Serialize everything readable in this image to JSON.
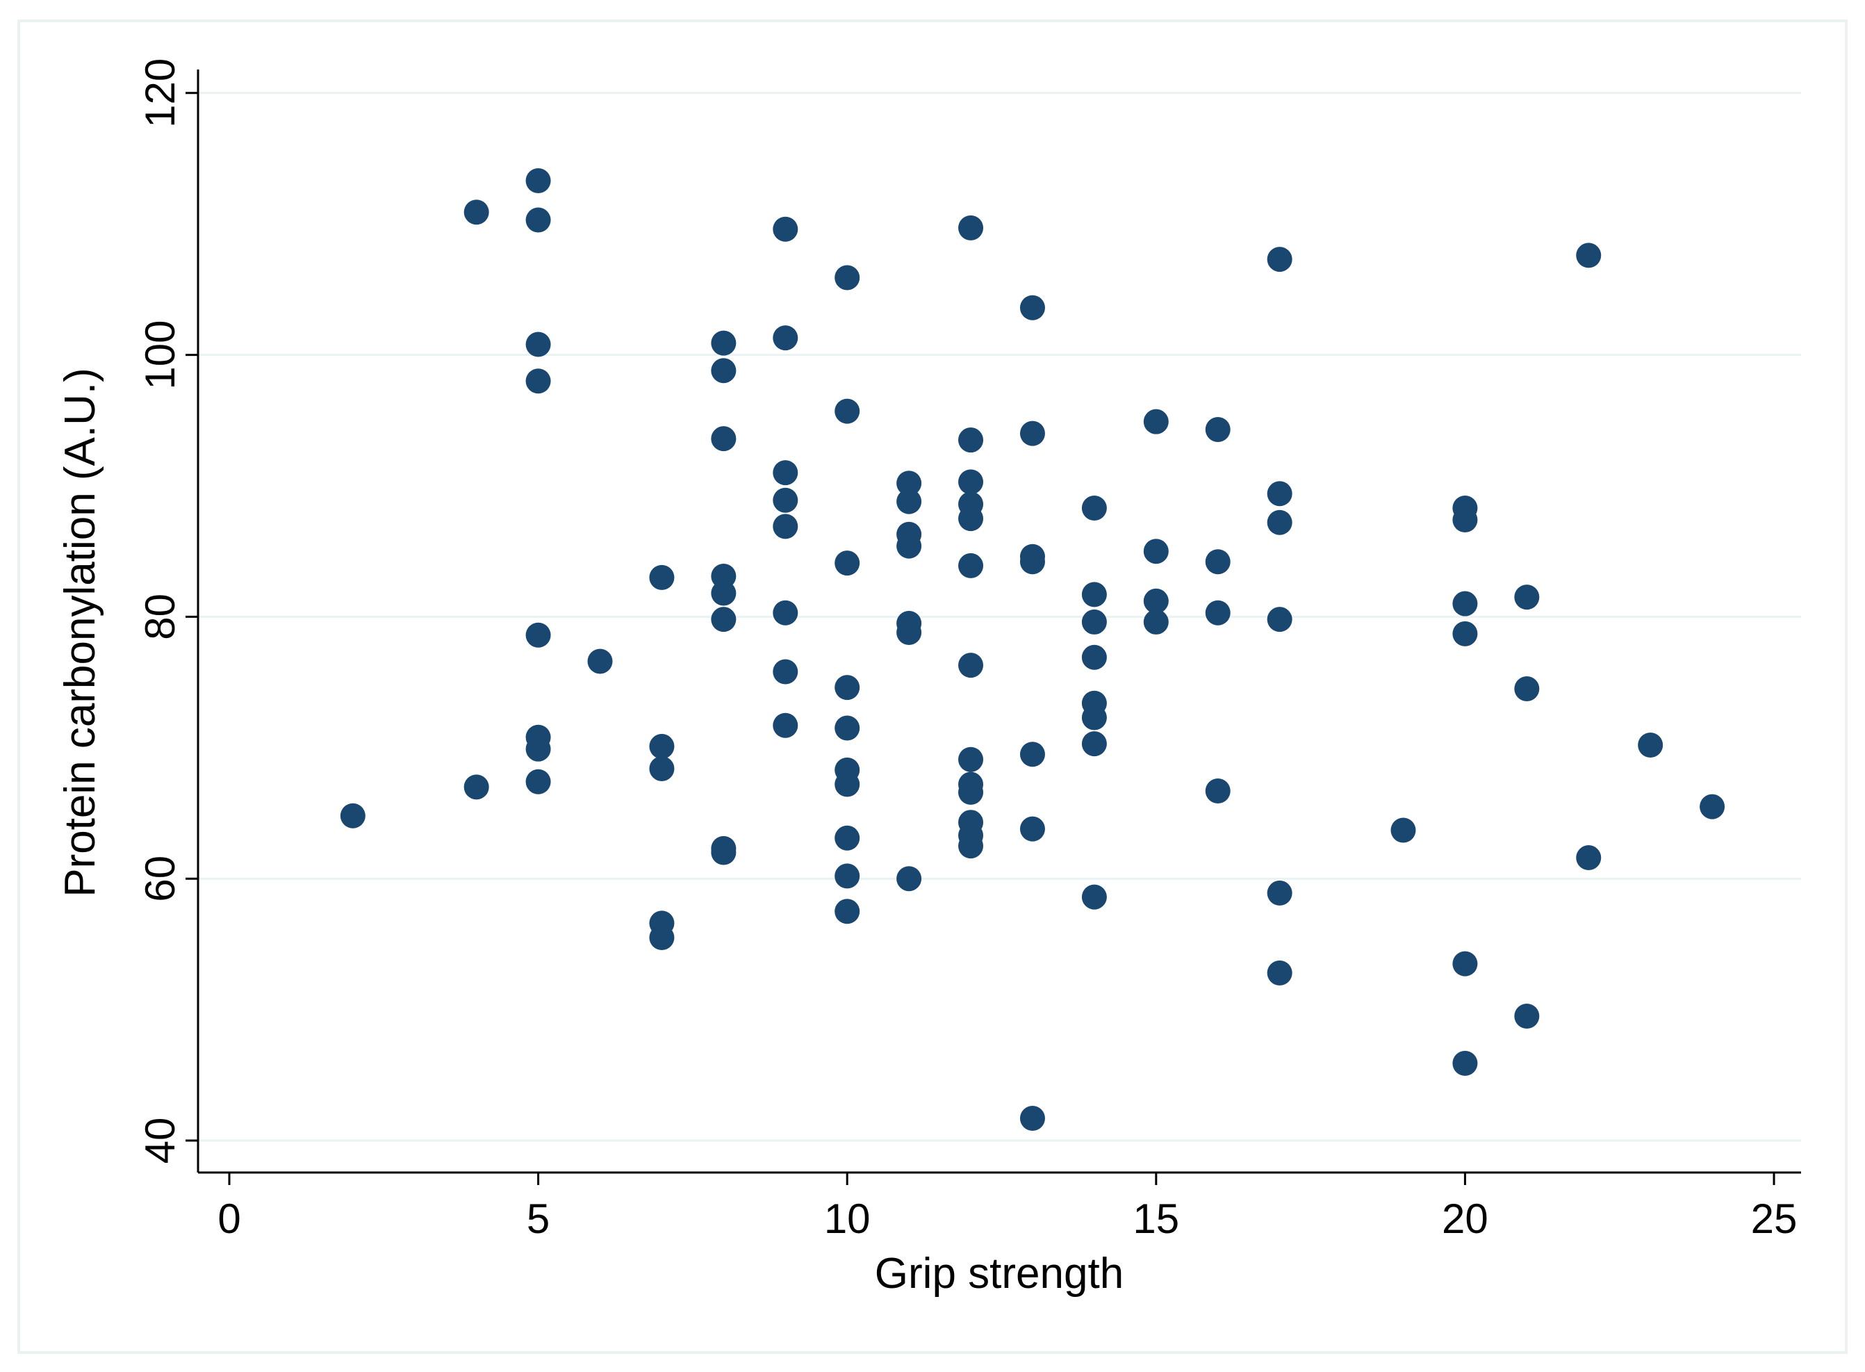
{
  "chart_data": {
    "type": "scatter",
    "title": "",
    "xlabel": "Grip strength",
    "ylabel": "Protein carbonylation (A.U.)",
    "xlim": [
      -1,
      25.9
    ],
    "ylim": [
      38,
      121
    ],
    "xticks": [
      0,
      5,
      10,
      15,
      20,
      25
    ],
    "yticks": [
      40,
      60,
      80,
      100,
      120
    ],
    "grid": "horizontal",
    "marker_color": "#1a4770",
    "points": [
      {
        "x": 2,
        "y": 64.8
      },
      {
        "x": 4,
        "y": 110.9
      },
      {
        "x": 4,
        "y": 67.0
      },
      {
        "x": 5,
        "y": 113.3
      },
      {
        "x": 5,
        "y": 110.3
      },
      {
        "x": 5,
        "y": 100.8
      },
      {
        "x": 5,
        "y": 98.0
      },
      {
        "x": 5,
        "y": 78.6
      },
      {
        "x": 5,
        "y": 70.8
      },
      {
        "x": 5,
        "y": 69.9
      },
      {
        "x": 5,
        "y": 67.4
      },
      {
        "x": 6,
        "y": 76.6
      },
      {
        "x": 7,
        "y": 83.0
      },
      {
        "x": 7,
        "y": 70.1
      },
      {
        "x": 7,
        "y": 68.4
      },
      {
        "x": 7,
        "y": 56.6
      },
      {
        "x": 7,
        "y": 55.5
      },
      {
        "x": 8,
        "y": 100.9
      },
      {
        "x": 8,
        "y": 98.8
      },
      {
        "x": 8,
        "y": 93.6
      },
      {
        "x": 8,
        "y": 83.1
      },
      {
        "x": 8,
        "y": 81.8
      },
      {
        "x": 8,
        "y": 79.8
      },
      {
        "x": 8,
        "y": 62.3
      },
      {
        "x": 8,
        "y": 62.0
      },
      {
        "x": 9,
        "y": 109.6
      },
      {
        "x": 9,
        "y": 101.3
      },
      {
        "x": 9,
        "y": 91.0
      },
      {
        "x": 9,
        "y": 88.9
      },
      {
        "x": 9,
        "y": 86.9
      },
      {
        "x": 9,
        "y": 80.3
      },
      {
        "x": 9,
        "y": 75.8
      },
      {
        "x": 9,
        "y": 71.7
      },
      {
        "x": 10,
        "y": 105.9
      },
      {
        "x": 10,
        "y": 95.7
      },
      {
        "x": 10,
        "y": 84.1
      },
      {
        "x": 10,
        "y": 74.6
      },
      {
        "x": 10,
        "y": 71.5
      },
      {
        "x": 10,
        "y": 68.3
      },
      {
        "x": 10,
        "y": 67.2
      },
      {
        "x": 10,
        "y": 63.1
      },
      {
        "x": 10,
        "y": 60.2
      },
      {
        "x": 10,
        "y": 57.5
      },
      {
        "x": 11,
        "y": 90.2
      },
      {
        "x": 11,
        "y": 88.8
      },
      {
        "x": 11,
        "y": 86.3
      },
      {
        "x": 11,
        "y": 85.4
      },
      {
        "x": 11,
        "y": 79.5
      },
      {
        "x": 11,
        "y": 78.8
      },
      {
        "x": 11,
        "y": 60.0
      },
      {
        "x": 12,
        "y": 109.7
      },
      {
        "x": 12,
        "y": 93.5
      },
      {
        "x": 12,
        "y": 90.3
      },
      {
        "x": 12,
        "y": 88.6
      },
      {
        "x": 12,
        "y": 87.5
      },
      {
        "x": 12,
        "y": 83.9
      },
      {
        "x": 12,
        "y": 76.3
      },
      {
        "x": 12,
        "y": 69.1
      },
      {
        "x": 12,
        "y": 67.2
      },
      {
        "x": 12,
        "y": 66.6
      },
      {
        "x": 12,
        "y": 64.3
      },
      {
        "x": 12,
        "y": 63.3
      },
      {
        "x": 12,
        "y": 62.5
      },
      {
        "x": 13,
        "y": 103.6
      },
      {
        "x": 13,
        "y": 94.0
      },
      {
        "x": 13,
        "y": 84.6
      },
      {
        "x": 13,
        "y": 84.2
      },
      {
        "x": 13,
        "y": 69.5
      },
      {
        "x": 13,
        "y": 63.8
      },
      {
        "x": 13,
        "y": 41.7
      },
      {
        "x": 14,
        "y": 88.3
      },
      {
        "x": 14,
        "y": 81.7
      },
      {
        "x": 14,
        "y": 79.6
      },
      {
        "x": 14,
        "y": 76.9
      },
      {
        "x": 14,
        "y": 73.4
      },
      {
        "x": 14,
        "y": 72.3
      },
      {
        "x": 14,
        "y": 70.3
      },
      {
        "x": 14,
        "y": 58.6
      },
      {
        "x": 15,
        "y": 94.9
      },
      {
        "x": 15,
        "y": 85.0
      },
      {
        "x": 15,
        "y": 81.2
      },
      {
        "x": 15,
        "y": 79.6
      },
      {
        "x": 16,
        "y": 94.3
      },
      {
        "x": 16,
        "y": 84.2
      },
      {
        "x": 16,
        "y": 80.3
      },
      {
        "x": 16,
        "y": 66.7
      },
      {
        "x": 17,
        "y": 107.3
      },
      {
        "x": 17,
        "y": 89.4
      },
      {
        "x": 17,
        "y": 87.2
      },
      {
        "x": 17,
        "y": 79.8
      },
      {
        "x": 17,
        "y": 58.9
      },
      {
        "x": 17,
        "y": 52.8
      },
      {
        "x": 19,
        "y": 63.7
      },
      {
        "x": 20,
        "y": 88.3
      },
      {
        "x": 20,
        "y": 87.4
      },
      {
        "x": 20,
        "y": 81.0
      },
      {
        "x": 20,
        "y": 78.7
      },
      {
        "x": 20,
        "y": 53.5
      },
      {
        "x": 20,
        "y": 45.9
      },
      {
        "x": 21,
        "y": 81.5
      },
      {
        "x": 21,
        "y": 74.5
      },
      {
        "x": 21,
        "y": 49.5
      },
      {
        "x": 22,
        "y": 107.6
      },
      {
        "x": 22,
        "y": 61.6
      },
      {
        "x": 23,
        "y": 70.2
      },
      {
        "x": 24,
        "y": 65.5
      }
    ]
  }
}
